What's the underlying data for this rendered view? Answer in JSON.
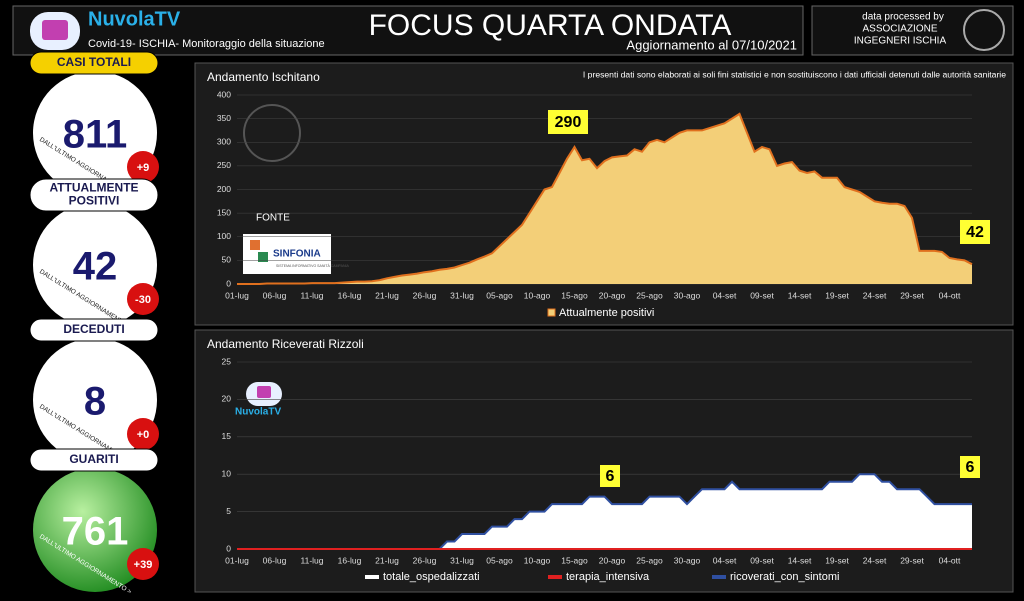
{
  "header": {
    "brand": "NuvolaTV",
    "subtitle": "Covid-19- ISCHIA- Monitoraggio della situazione",
    "title": "FOCUS QUARTA ONDATA",
    "update": "Aggiornamento al 07/10/2021",
    "credit": [
      "data processed by",
      "ASSOCIAZIONE",
      "INGEGNERI ISCHIA"
    ]
  },
  "kpis": [
    {
      "label": [
        "CASI TOTALI"
      ],
      "value": "811",
      "delta": "+9",
      "note": "DALL'ULTIMO AGGIORNAMENTO >",
      "style": "yellow"
    },
    {
      "label": [
        "ATTUALMENTE",
        "POSITIVI"
      ],
      "value": "42",
      "delta": "-30",
      "note": "DALL'ULTIMO AGGIORNAMENTO >",
      "style": "white"
    },
    {
      "label": [
        "DECEDUTI"
      ],
      "value": "8",
      "delta": "+0",
      "note": "DALL'ULTIMO AGGIORNAMENTO >",
      "style": "white"
    },
    {
      "label": [
        "GUARITI"
      ],
      "value": "761",
      "delta": "+39",
      "note": "DALL'ULTIMO AGGIORNAMENTO >",
      "style": "green"
    }
  ],
  "chart_data": [
    {
      "type": "area",
      "title": "Andamento Ischitano",
      "subtitle": "I presenti dati sono elaborati ai soli fini statistici e non sostituiscono i dati ufficiali detenuti dalle autorità sanitarie",
      "source_label": "FONTE",
      "source": "SINFONIA",
      "source_sub": "SISTEMA INFORMATIVO SANITÀ CAMPANIA",
      "annotations": [
        "290",
        "42"
      ],
      "categories": [
        "01-lug",
        null,
        null,
        null,
        null,
        "06-lug",
        null,
        null,
        null,
        null,
        "11-lug",
        null,
        null,
        null,
        null,
        "16-lug",
        null,
        null,
        null,
        null,
        "21-lug",
        null,
        null,
        null,
        null,
        "26-lug",
        null,
        null,
        null,
        null,
        "31-lug",
        null,
        null,
        null,
        null,
        "05-ago",
        null,
        null,
        null,
        null,
        "10-ago",
        null,
        null,
        null,
        null,
        "15-ago",
        null,
        null,
        null,
        null,
        "20-ago",
        null,
        null,
        null,
        null,
        "25-ago",
        null,
        null,
        null,
        null,
        "30-ago",
        null,
        null,
        null,
        null,
        "04-set",
        null,
        null,
        null,
        null,
        "09-set",
        null,
        null,
        null,
        null,
        "14-set",
        null,
        null,
        null,
        null,
        "19-set",
        null,
        null,
        null,
        null,
        "24-set",
        null,
        null,
        null,
        null,
        "29-set",
        null,
        null,
        null,
        null,
        "04-ott",
        null,
        null,
        null
      ],
      "series": [
        {
          "name": "Attualmente positivi",
          "color": "#f3cf78",
          "stroke": "#e0701e",
          "values": [
            0,
            0,
            0,
            0,
            1,
            1,
            1,
            1,
            1,
            1,
            2,
            2,
            2,
            2,
            3,
            4,
            5,
            5,
            6,
            8,
            12,
            15,
            18,
            20,
            22,
            25,
            27,
            30,
            32,
            35,
            40,
            45,
            52,
            58,
            65,
            80,
            95,
            110,
            125,
            150,
            175,
            200,
            205,
            235,
            265,
            290,
            262,
            265,
            245,
            260,
            268,
            270,
            272,
            285,
            280,
            300,
            305,
            300,
            310,
            320,
            325,
            325,
            325,
            330,
            335,
            340,
            350,
            360,
            320,
            280,
            290,
            285,
            250,
            255,
            258,
            240,
            235,
            238,
            225,
            225,
            225,
            205,
            200,
            195,
            185,
            175,
            172,
            170,
            170,
            165,
            140,
            70,
            70,
            70,
            68,
            55,
            52,
            50,
            42
          ]
        }
      ],
      "ylim": [
        0,
        400
      ],
      "yticks": [
        0,
        50,
        100,
        150,
        200,
        250,
        300,
        350,
        400
      ],
      "grid": true
    },
    {
      "type": "area",
      "title": "Andamento Riceverati  Rizzoli",
      "watermark": "NuvolaTV",
      "annotations": [
        "6",
        "6"
      ],
      "categories": [
        "01-lug",
        null,
        null,
        null,
        null,
        "06-lug",
        null,
        null,
        null,
        null,
        "11-lug",
        null,
        null,
        null,
        null,
        "16-lug",
        null,
        null,
        null,
        null,
        "21-lug",
        null,
        null,
        null,
        null,
        "26-lug",
        null,
        null,
        null,
        null,
        "31-lug",
        null,
        null,
        null,
        null,
        "05-ago",
        null,
        null,
        null,
        null,
        "10-ago",
        null,
        null,
        null,
        null,
        "15-ago",
        null,
        null,
        null,
        null,
        "20-ago",
        null,
        null,
        null,
        null,
        "25-ago",
        null,
        null,
        null,
        null,
        "30-ago",
        null,
        null,
        null,
        null,
        "04-set",
        null,
        null,
        null,
        null,
        "09-set",
        null,
        null,
        null,
        null,
        "14-set",
        null,
        null,
        null,
        null,
        "19-set",
        null,
        null,
        null,
        null,
        "24-set",
        null,
        null,
        null,
        null,
        "29-set",
        null,
        null,
        null,
        null,
        "04-ott",
        null,
        null,
        null
      ],
      "series": [
        {
          "name": "totale_ospedalizzati",
          "color": "#ffffff",
          "values": [
            0,
            0,
            0,
            0,
            0,
            0,
            0,
            0,
            0,
            0,
            0,
            0,
            0,
            0,
            0,
            0,
            0,
            0,
            0,
            0,
            0,
            0,
            0,
            0,
            0,
            0,
            0,
            0,
            1,
            1,
            2,
            2,
            2,
            2,
            3,
            3,
            3,
            4,
            4,
            5,
            5,
            5,
            6,
            6,
            6,
            6,
            6,
            7,
            7,
            7,
            6,
            6,
            6,
            6,
            6,
            7,
            7,
            7,
            7,
            7,
            6,
            7,
            8,
            8,
            8,
            8,
            9,
            8,
            8,
            8,
            8,
            8,
            8,
            8,
            8,
            8,
            8,
            8,
            8,
            9,
            9,
            9,
            9,
            10,
            10,
            10,
            9,
            9,
            8,
            8,
            8,
            8,
            7,
            6,
            6,
            6,
            6,
            6,
            6
          ]
        },
        {
          "name": "terapia_intensiva",
          "color": "#e02020",
          "values": [
            0,
            0,
            0,
            0,
            0,
            0,
            0,
            0,
            0,
            0,
            0,
            0,
            0,
            0,
            0,
            0,
            0,
            0,
            0,
            0,
            0,
            0,
            0,
            0,
            0,
            0,
            0,
            0,
            0,
            0,
            0,
            0,
            0,
            0,
            0,
            0,
            0,
            0,
            0,
            0,
            0,
            0,
            0,
            0,
            0,
            0,
            0,
            0,
            0,
            0,
            0,
            0,
            0,
            0,
            0,
            0,
            0,
            0,
            0,
            0,
            0,
            0,
            0,
            0,
            0,
            0,
            0,
            0,
            0,
            0,
            0,
            0,
            0,
            0,
            0,
            0,
            0,
            0,
            0,
            0,
            0,
            0,
            0,
            0,
            0,
            0,
            0,
            0,
            0,
            0,
            0,
            0,
            0,
            0,
            0,
            0,
            0,
            0,
            0
          ]
        },
        {
          "name": "ricoverati_con_sintomi",
          "color": "#2f4fa0",
          "values": [
            0,
            0,
            0,
            0,
            0,
            0,
            0,
            0,
            0,
            0,
            0,
            0,
            0,
            0,
            0,
            0,
            0,
            0,
            0,
            0,
            0,
            0,
            0,
            0,
            0,
            0,
            0,
            0,
            1,
            1,
            2,
            2,
            2,
            2,
            3,
            3,
            3,
            4,
            4,
            5,
            5,
            5,
            6,
            6,
            6,
            6,
            6,
            7,
            7,
            7,
            6,
            6,
            6,
            6,
            6,
            7,
            7,
            7,
            7,
            7,
            6,
            7,
            8,
            8,
            8,
            8,
            9,
            8,
            8,
            8,
            8,
            8,
            8,
            8,
            8,
            8,
            8,
            8,
            8,
            9,
            9,
            9,
            9,
            10,
            10,
            10,
            9,
            9,
            8,
            8,
            8,
            8,
            7,
            6,
            6,
            6,
            6,
            6,
            6
          ]
        }
      ],
      "ylim": [
        0,
        25
      ],
      "yticks": [
        0,
        5,
        10,
        15,
        20,
        25
      ],
      "grid": true
    }
  ]
}
